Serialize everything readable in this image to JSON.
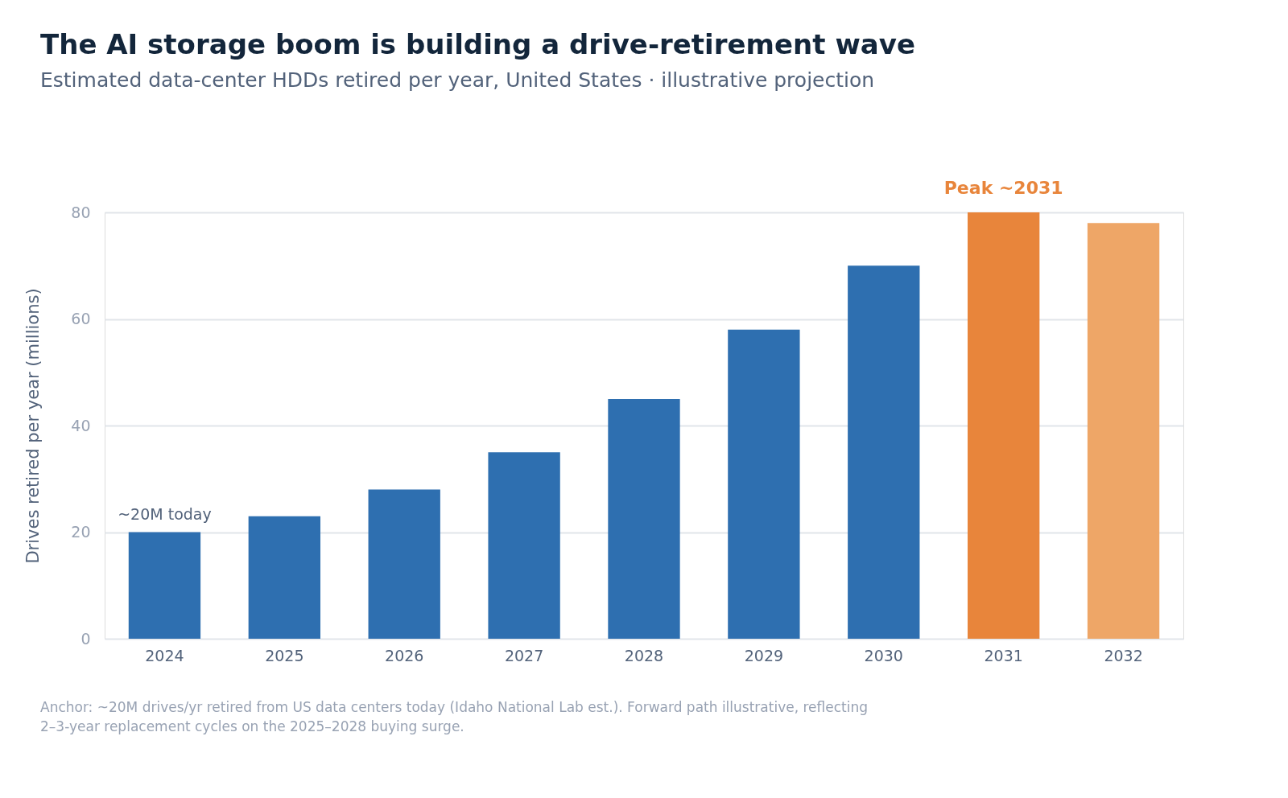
{
  "chart_data": {
    "type": "bar",
    "title": "The AI storage boom is building a drive-retirement wave",
    "subtitle": "Estimated data-center HDDs retired per year, United States · illustrative projection",
    "ylabel": "Drives retired per year (millions)",
    "categories": [
      "2024",
      "2025",
      "2026",
      "2027",
      "2028",
      "2029",
      "2030",
      "2031",
      "2032"
    ],
    "values": [
      20,
      23,
      28,
      35,
      45,
      58,
      70,
      80,
      78
    ],
    "colors": [
      "#2e6fb0",
      "#2e6fb0",
      "#2e6fb0",
      "#2e6fb0",
      "#2e6fb0",
      "#2e6fb0",
      "#2e6fb0",
      "#e8853b",
      "#eea667"
    ],
    "ylim": [
      0,
      80
    ],
    "yticks": [
      0,
      20,
      40,
      60,
      80
    ],
    "grid": "y",
    "legend": false,
    "annotations": [
      {
        "text": "~20M today",
        "x": "2024",
        "y": 20
      },
      {
        "text": "Peak ~2031",
        "x": "2031",
        "y": 80
      },
      "Anchor: ~20M drives/yr retired from US data centers today (Idaho National Lab est.). Forward path illustrative, reflecting 2–3-year replacement cycles on the 2025–2028 buying surge."
    ]
  }
}
